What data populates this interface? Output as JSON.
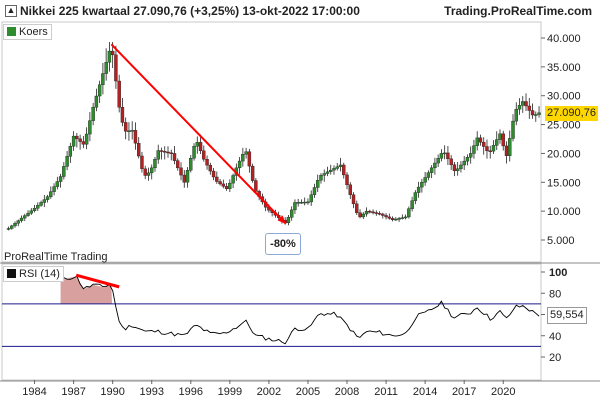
{
  "header": {
    "title": "Nikkei 225 kwartaal 27.090,76 (+3,25%) 13-okt-2022 17:00:00",
    "brand": "Trading.ProRealTime.com"
  },
  "price_panel": {
    "legend_label": "Koers",
    "last_value_label": "27.090,76",
    "annotation": "-80%",
    "footer_label": "ProRealTime Trading"
  },
  "rsi_panel": {
    "legend_label": "RSI (14)",
    "last_value_label": "59,554"
  },
  "colors": {
    "up": "#2e8b2e",
    "down": "#b22222",
    "arrow": "#ff0000",
    "rsi_line": "#000000",
    "level_line": "#1a1a8c",
    "price_tag": "#ffd700",
    "rsi_fill": "#d9a0a0"
  },
  "chart_data": [
    {
      "type": "candlestick",
      "title": "Nikkei 225 kwartaal",
      "x_ticks": [
        "1984",
        "1987",
        "1990",
        "1993",
        "1996",
        "1999",
        "2002",
        "2005",
        "2008",
        "2011",
        "2014",
        "2017",
        "2020"
      ],
      "y_ticks": [
        "5.000",
        "10.000",
        "15.000",
        "20.000",
        "25.000",
        "30.000",
        "35.000",
        "40.000"
      ],
      "ylim": [
        2500,
        42000
      ],
      "xlim": [
        1981.5,
        2022.9
      ],
      "approx_close_path": [
        [
          1982.0,
          7000
        ],
        [
          1983.0,
          8800
        ],
        [
          1984.0,
          10500
        ],
        [
          1985.0,
          12500
        ],
        [
          1986.0,
          16000
        ],
        [
          1987.0,
          23000
        ],
        [
          1987.8,
          21500
        ],
        [
          1988.5,
          28000
        ],
        [
          1989.9,
          38900
        ],
        [
          1990.5,
          28000
        ],
        [
          1990.9,
          23800
        ],
        [
          1991.5,
          24000
        ],
        [
          1992.4,
          16000
        ],
        [
          1992.9,
          16900
        ],
        [
          1993.5,
          20500
        ],
        [
          1994.5,
          20000
        ],
        [
          1995.5,
          15000
        ],
        [
          1996.4,
          22500
        ],
        [
          1997.0,
          19000
        ],
        [
          1997.9,
          15300
        ],
        [
          1998.8,
          13800
        ],
        [
          1999.5,
          17500
        ],
        [
          2000.2,
          20800
        ],
        [
          2000.9,
          13800
        ],
        [
          2001.8,
          10500
        ],
        [
          2003.3,
          7900
        ],
        [
          2004.0,
          11500
        ],
        [
          2005.0,
          11600
        ],
        [
          2005.9,
          16100
        ],
        [
          2007.5,
          18000
        ],
        [
          2008.3,
          12500
        ],
        [
          2008.9,
          8800
        ],
        [
          2009.5,
          10000
        ],
        [
          2010.5,
          9500
        ],
        [
          2011.5,
          8500
        ],
        [
          2012.5,
          9000
        ],
        [
          2013.3,
          13500
        ],
        [
          2014.5,
          17500
        ],
        [
          2015.4,
          20500
        ],
        [
          2016.3,
          16800
        ],
        [
          2017.5,
          20000
        ],
        [
          2018.0,
          22700
        ],
        [
          2018.9,
          20000
        ],
        [
          2019.8,
          23600
        ],
        [
          2020.2,
          19000
        ],
        [
          2020.9,
          27400
        ],
        [
          2021.5,
          29000
        ],
        [
          2022.3,
          26500
        ],
        [
          2022.8,
          27090.76
        ]
      ],
      "last_value": 27090.76,
      "arrow": {
        "from": [
          1989.9,
          38900
        ],
        "to": [
          2003.3,
          7800
        ],
        "label": "-80%"
      }
    },
    {
      "type": "line",
      "title": "RSI (14)",
      "y_ticks": [
        "20",
        "40",
        "60",
        "80",
        "100"
      ],
      "ylim": [
        12,
        105
      ],
      "levels": [
        70,
        30
      ],
      "approx_path": [
        [
          1986.0,
          92
        ],
        [
          1986.5,
          94
        ],
        [
          1987.2,
          96
        ],
        [
          1987.8,
          84
        ],
        [
          1988.5,
          88
        ],
        [
          1989.2,
          86
        ],
        [
          1989.9,
          89
        ],
        [
          1990.4,
          57
        ],
        [
          1990.8,
          46
        ],
        [
          1991.5,
          50
        ],
        [
          1992.5,
          44
        ],
        [
          1993.5,
          44
        ],
        [
          1994.5,
          42
        ],
        [
          1995.5,
          40
        ],
        [
          1996.4,
          50
        ],
        [
          1997.5,
          42
        ],
        [
          1998.5,
          42
        ],
        [
          1999.5,
          48
        ],
        [
          2000.2,
          54
        ],
        [
          2001.0,
          40
        ],
        [
          2002.0,
          37
        ],
        [
          2003.3,
          34
        ],
        [
          2004.0,
          47
        ],
        [
          2005.0,
          46
        ],
        [
          2005.9,
          61
        ],
        [
          2007.2,
          60
        ],
        [
          2008.0,
          50
        ],
        [
          2008.9,
          37
        ],
        [
          2009.5,
          44
        ],
        [
          2010.5,
          43
        ],
        [
          2011.5,
          40
        ],
        [
          2012.5,
          42
        ],
        [
          2013.3,
          58
        ],
        [
          2014.0,
          61
        ],
        [
          2014.5,
          65
        ],
        [
          2015.3,
          71
        ],
        [
          2016.2,
          57
        ],
        [
          2017.5,
          62
        ],
        [
          2018.0,
          67
        ],
        [
          2019.0,
          56
        ],
        [
          2019.8,
          63
        ],
        [
          2020.2,
          55
        ],
        [
          2020.9,
          67
        ],
        [
          2021.6,
          68
        ],
        [
          2022.3,
          62
        ],
        [
          2022.8,
          59.554
        ]
      ],
      "last_value": 59.554,
      "trend_line": {
        "from": [
          1987.2,
          97
        ],
        "to": [
          1990.5,
          86
        ]
      }
    }
  ]
}
